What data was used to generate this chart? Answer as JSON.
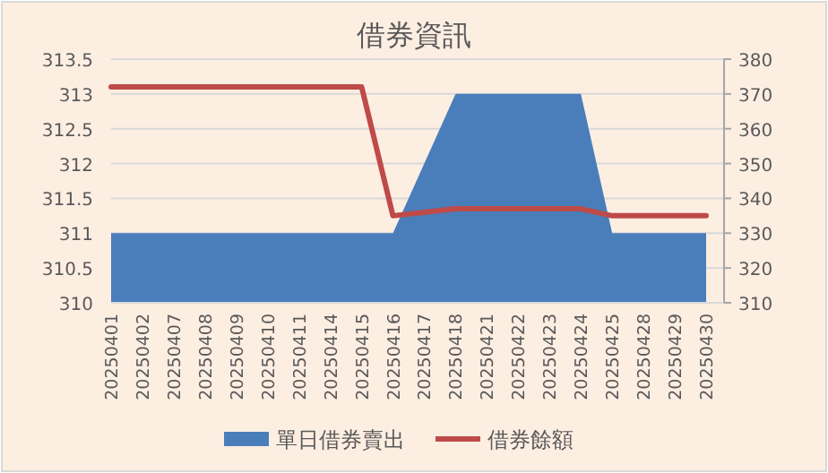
{
  "chart_data": {
    "type": "area",
    "title": "借券資訊",
    "categories": [
      "20250401",
      "20250402",
      "20250407",
      "20250408",
      "20250409",
      "20250410",
      "20250411",
      "20250414",
      "20250415",
      "20250416",
      "20250417",
      "20250418",
      "20250421",
      "20250422",
      "20250423",
      "20250424",
      "20250425",
      "20250428",
      "20250429",
      "20250430"
    ],
    "series": [
      {
        "name": "單日借券賣出",
        "color": "#4a7ebb",
        "values": [
          311,
          311,
          311,
          311,
          311,
          311,
          311,
          311,
          311,
          311,
          312,
          313,
          313,
          313,
          313,
          313,
          311,
          311,
          311,
          311
        ]
      },
      {
        "name": "借券餘額",
        "type": "line",
        "axis": "y2",
        "color": "#be4b48",
        "values": [
          372,
          372,
          372,
          372,
          372,
          372,
          372,
          372,
          372,
          335,
          336,
          337,
          337,
          337,
          337,
          337,
          335,
          335,
          335,
          335
        ]
      }
    ],
    "ylim": [
      310,
      313.5
    ],
    "yticks": [
      310,
      310.5,
      311,
      311.5,
      312,
      312.5,
      313,
      313.5
    ],
    "y2lim": [
      310,
      380
    ],
    "y2ticks": [
      310,
      320,
      330,
      340,
      350,
      360,
      370,
      380
    ],
    "grid": "y",
    "legend": "bottom"
  }
}
